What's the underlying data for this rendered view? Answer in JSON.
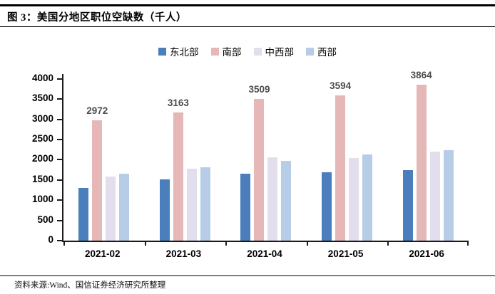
{
  "header": {
    "title": "图 3：美国分地区职位空缺数（千人）"
  },
  "footer": {
    "source": "资料来源:Wind、国信证券经济研究所整理"
  },
  "chart_data": {
    "type": "bar",
    "title": "美国分地区职位空缺数（千人）",
    "categories": [
      "2021-02",
      "2021-03",
      "2021-04",
      "2021-05",
      "2021-06"
    ],
    "series": [
      {
        "key": "northeast",
        "name": "东北部",
        "color": "#4a7ebc",
        "values": [
          1300,
          1520,
          1650,
          1690,
          1750
        ]
      },
      {
        "key": "south",
        "name": "南部",
        "color": "#e5b7b6",
        "values": [
          2972,
          3163,
          3509,
          3594,
          3864
        ],
        "show_data_labels": true
      },
      {
        "key": "midwest",
        "name": "中西部",
        "color": "#e3deee",
        "values": [
          1590,
          1780,
          2070,
          2050,
          2200
        ]
      },
      {
        "key": "west",
        "name": "西部",
        "color": "#b7cde7",
        "values": [
          1660,
          1820,
          1970,
          2130,
          2240
        ]
      }
    ],
    "data_labels": [
      "2972",
      "3163",
      "3509",
      "3594",
      "3864"
    ],
    "ylim": [
      0,
      4000
    ],
    "ytick_step": 500,
    "xlabel": "",
    "ylabel": "",
    "grid": false,
    "legend_position": "top",
    "label_color": "#4d4d4d",
    "axis_color": "#1a1a1a"
  }
}
